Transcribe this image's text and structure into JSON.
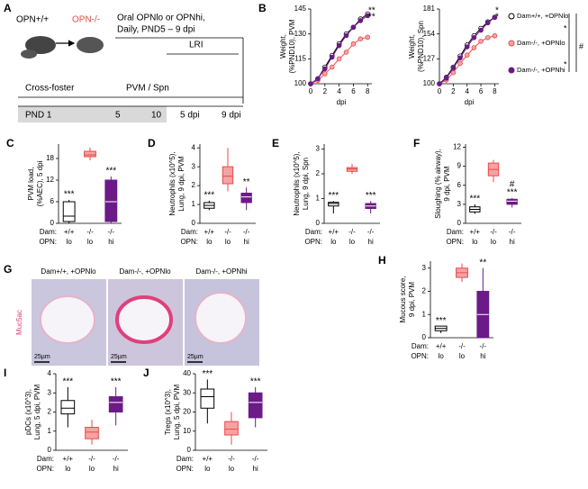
{
  "panel_a": {
    "label": "A",
    "donor": "OPN+/+",
    "recipient": "OPN-/-",
    "treatment": [
      "Oral OPNlo or OPNhi,",
      "Daily, PND5 – 9 dpi"
    ],
    "lri": "LRI",
    "cross_foster": "Cross-foster",
    "infection": "PVM / Spn",
    "timeline": [
      "PND 1",
      "5",
      "10",
      "5 dpi",
      "9 dpi"
    ]
  },
  "panel_g": {
    "label": "G",
    "titles": [
      "Dam+/+, +OPNlo",
      "Dam-/-, +OPNlo",
      "Dam-/-, +OPNhi"
    ],
    "stain": "Muc5ac",
    "scale": [
      "25µm",
      "25µm",
      "25µm"
    ]
  },
  "chart_data": [
    {
      "type": "line",
      "panel": "B",
      "ylabel": [
        "Weight,",
        "(%PND10), PVM"
      ],
      "xlabel": "dpi",
      "x": [
        0,
        1,
        2,
        3,
        4,
        5,
        6,
        7,
        8
      ],
      "xlim": [
        0,
        8.6
      ],
      "xticks": [
        0,
        2,
        4,
        6,
        8
      ],
      "ylim": [
        100,
        145
      ],
      "yticks": [
        100,
        115,
        130,
        145
      ],
      "annotations": [
        "**",
        "**"
      ],
      "series": [
        {
          "name": "Dam+/+, +OPNlo",
          "color": "#ffffff",
          "edge": "#000000",
          "values": [
            100,
            103,
            110,
            117,
            124,
            130,
            134,
            139,
            142
          ]
        },
        {
          "name": "Dam-/-, +OPNlo",
          "color": "#f4a3a3",
          "edge": "#e84a4a",
          "values": [
            100,
            102,
            106,
            110,
            115,
            119,
            124,
            127,
            128
          ]
        },
        {
          "name": "Dam-/-, +OPNhi",
          "color": "#6b1a87",
          "edge": "#6b1a87",
          "values": [
            100,
            103,
            109,
            116,
            123,
            129,
            134,
            138,
            141
          ]
        }
      ]
    },
    {
      "type": "line",
      "ylabel": [
        "Weight,",
        "(%PND10), Spn"
      ],
      "xlabel": "dpi",
      "x": [
        0,
        1,
        2,
        3,
        4,
        5,
        6,
        7,
        8
      ],
      "xlim": [
        0,
        8.6
      ],
      "xticks": [
        0,
        2,
        4,
        6,
        8
      ],
      "ylim": [
        100,
        181
      ],
      "yticks": [
        100,
        127,
        154,
        181
      ],
      "annotations": [
        "*",
        "*"
      ],
      "legend": "right",
      "legend_annotations": [
        "*",
        "#",
        "*"
      ],
      "series": [
        {
          "name": "Dam+/+, +OPNlo",
          "color": "#ffffff",
          "edge": "#000000",
          "values": [
            100,
            107,
            118,
            130,
            142,
            152,
            160,
            167,
            172
          ]
        },
        {
          "name": "Dam-/-, +OPNlo",
          "color": "#f4a3a3",
          "edge": "#e84a4a",
          "values": [
            100,
            104,
            112,
            122,
            131,
            139,
            146,
            150,
            152
          ]
        },
        {
          "name": "Dam-/-, +OPNhi",
          "color": "#6b1a87",
          "edge": "#6b1a87",
          "values": [
            100,
            106,
            117,
            128,
            140,
            150,
            158,
            166,
            172
          ]
        }
      ]
    },
    {
      "type": "box",
      "panel": "C",
      "ylabel": [
        "PVM load,",
        "(%AEC), 5 dpi"
      ],
      "ylim": [
        0,
        22
      ],
      "yticks": [
        0,
        6,
        12,
        18
      ],
      "row_labels": [
        "Dam:",
        "OPN:"
      ],
      "dam": [
        "+/+",
        "-/-",
        "-/-"
      ],
      "opn": [
        "lo",
        "lo",
        "hi"
      ],
      "fills": [
        "#ffffff",
        "#f4a3a3",
        "#6b1a87"
      ],
      "edges": [
        "#000000",
        "#e84a4a",
        "#6b1a87"
      ],
      "stats": [
        [
          0,
          0.5,
          2,
          6,
          6.5
        ],
        [
          17.5,
          18.5,
          19,
          20,
          21
        ],
        [
          0,
          0.5,
          6,
          12,
          13
        ]
      ],
      "sig": [
        [
          "***"
        ],
        [],
        [
          "***"
        ]
      ]
    },
    {
      "type": "box",
      "panel": "D",
      "ylabel": [
        "Neutrophils (x10^5),",
        "Lung, 9 dpi, PVM"
      ],
      "ylim": [
        0,
        4.2
      ],
      "yticks": [
        0,
        1,
        2,
        3,
        4
      ],
      "row_labels": [
        "Dam:",
        "OPN:"
      ],
      "dam": [
        "+/+",
        "-/-",
        "-/-"
      ],
      "opn": [
        "lo",
        "lo",
        "hi"
      ],
      "fills": [
        "#ffffff",
        "#f4a3a3",
        "#6b1a87"
      ],
      "edges": [
        "#000000",
        "#e84a4a",
        "#6b1a87"
      ],
      "stats": [
        [
          0.7,
          0.8,
          0.95,
          1.1,
          1.2
        ],
        [
          1.7,
          2.1,
          2.5,
          3.0,
          4.0
        ],
        [
          0.7,
          1.1,
          1.4,
          1.6,
          1.9
        ]
      ],
      "sig": [
        [
          "***"
        ],
        [],
        [
          "**"
        ]
      ]
    },
    {
      "type": "box",
      "panel": "E",
      "ylabel": [
        "Neutrophils (x10^5),",
        "Lung, 9 dpi, Spn"
      ],
      "ylim": [
        0,
        3.2
      ],
      "yticks": [
        0,
        1,
        2,
        3
      ],
      "row_labels": [
        "Dam:",
        "OPN:"
      ],
      "dam": [
        "+/+",
        "-/-",
        "-/-"
      ],
      "opn": [
        "lo",
        "lo",
        "hi"
      ],
      "fills": [
        "#ffffff",
        "#f4a3a3",
        "#6b1a87"
      ],
      "edges": [
        "#000000",
        "#e84a4a",
        "#6b1a87"
      ],
      "stats": [
        [
          0.4,
          0.7,
          0.8,
          0.85,
          0.9
        ],
        [
          2.0,
          2.1,
          2.2,
          2.25,
          2.4
        ],
        [
          0.4,
          0.6,
          0.7,
          0.8,
          0.9
        ]
      ],
      "sig": [
        [
          "***"
        ],
        [],
        [
          "***"
        ]
      ]
    },
    {
      "type": "box",
      "panel": "F",
      "ylabel": [
        "Sloughing (% airway),",
        "9 dpi, PVM"
      ],
      "ylim": [
        0,
        12.5
      ],
      "yticks": [
        0,
        3,
        6,
        9,
        12
      ],
      "row_labels": [
        "Dam:",
        "OPN:"
      ],
      "dam": [
        "+/+",
        "-/-",
        "-/-"
      ],
      "opn": [
        "lo",
        "lo",
        "hi"
      ],
      "fills": [
        "#ffffff",
        "#f4a3a3",
        "#6b1a87"
      ],
      "edges": [
        "#000000",
        "#e84a4a",
        "#6b1a87"
      ],
      "stats": [
        [
          1.5,
          1.8,
          2.2,
          2.6,
          3
        ],
        [
          6.5,
          7.5,
          8.5,
          9.5,
          10
        ],
        [
          2.5,
          3.0,
          3.5,
          3.8,
          4
        ]
      ],
      "sig": [
        [
          "***"
        ],
        [],
        [
          "#",
          "***"
        ]
      ]
    },
    {
      "type": "box",
      "panel": "H",
      "ylabel": [
        "Mucous score,",
        "9 dpi, PVM"
      ],
      "ylim": [
        0,
        3.3
      ],
      "yticks": [
        0,
        1,
        2,
        3
      ],
      "row_labels": [
        "Dam:",
        "OPN:"
      ],
      "dam": [
        "+/+",
        "-/-",
        "-/-"
      ],
      "opn": [
        "lo",
        "lo",
        "hi"
      ],
      "fills": [
        "#ffffff",
        "#f4a3a3",
        "#6b1a87"
      ],
      "edges": [
        "#000000",
        "#e84a4a",
        "#6b1a87"
      ],
      "stats": [
        [
          0.2,
          0.3,
          0.4,
          0.5,
          0.5
        ],
        [
          2.4,
          2.6,
          2.8,
          3.0,
          3.2
        ],
        [
          0,
          0,
          1,
          2,
          3
        ]
      ],
      "sig": [
        [
          "***"
        ],
        [],
        [
          "**"
        ]
      ]
    },
    {
      "type": "box",
      "panel": "I",
      "ylabel": [
        "pDCs (x10^3),",
        "Lung, 5 dpi, PVM"
      ],
      "ylim": [
        0,
        4
      ],
      "yticks": [
        0,
        1,
        2,
        3,
        4
      ],
      "row_labels": [
        "Dam:",
        "OPN:"
      ],
      "dam": [
        "+/+",
        "-/-",
        "-/-"
      ],
      "opn": [
        "lo",
        "lo",
        "hi"
      ],
      "fills": [
        "#ffffff",
        "#f4a3a3",
        "#6b1a87"
      ],
      "edges": [
        "#000000",
        "#e84a4a",
        "#6b1a87"
      ],
      "stats": [
        [
          1.2,
          1.9,
          2.2,
          2.6,
          3.3
        ],
        [
          0.3,
          0.6,
          0.95,
          1.2,
          1.6
        ],
        [
          1.3,
          2.0,
          2.5,
          2.8,
          3.3
        ]
      ],
      "sig": [
        [
          "***"
        ],
        [],
        [
          "***"
        ]
      ]
    },
    {
      "type": "box",
      "panel": "J",
      "ylabel": [
        "Tregs (x10^3),",
        "Lung, 5 dpi, PVM"
      ],
      "ylim": [
        0,
        40
      ],
      "yticks": [
        0,
        10,
        20,
        30,
        40
      ],
      "row_labels": [
        "Dam:",
        "OPN:"
      ],
      "dam": [
        "+/+",
        "-/-",
        "-/-"
      ],
      "opn": [
        "lo",
        "lo",
        "hi"
      ],
      "fills": [
        "#ffffff",
        "#f4a3a3",
        "#6b1a87"
      ],
      "edges": [
        "#000000",
        "#e84a4a",
        "#6b1a87"
      ],
      "stats": [
        [
          14,
          22,
          28,
          32,
          37
        ],
        [
          3,
          8,
          11,
          15,
          20
        ],
        [
          12,
          17,
          25,
          30,
          33
        ]
      ],
      "sig": [
        [
          "***"
        ],
        [],
        [
          "***"
        ]
      ]
    }
  ]
}
